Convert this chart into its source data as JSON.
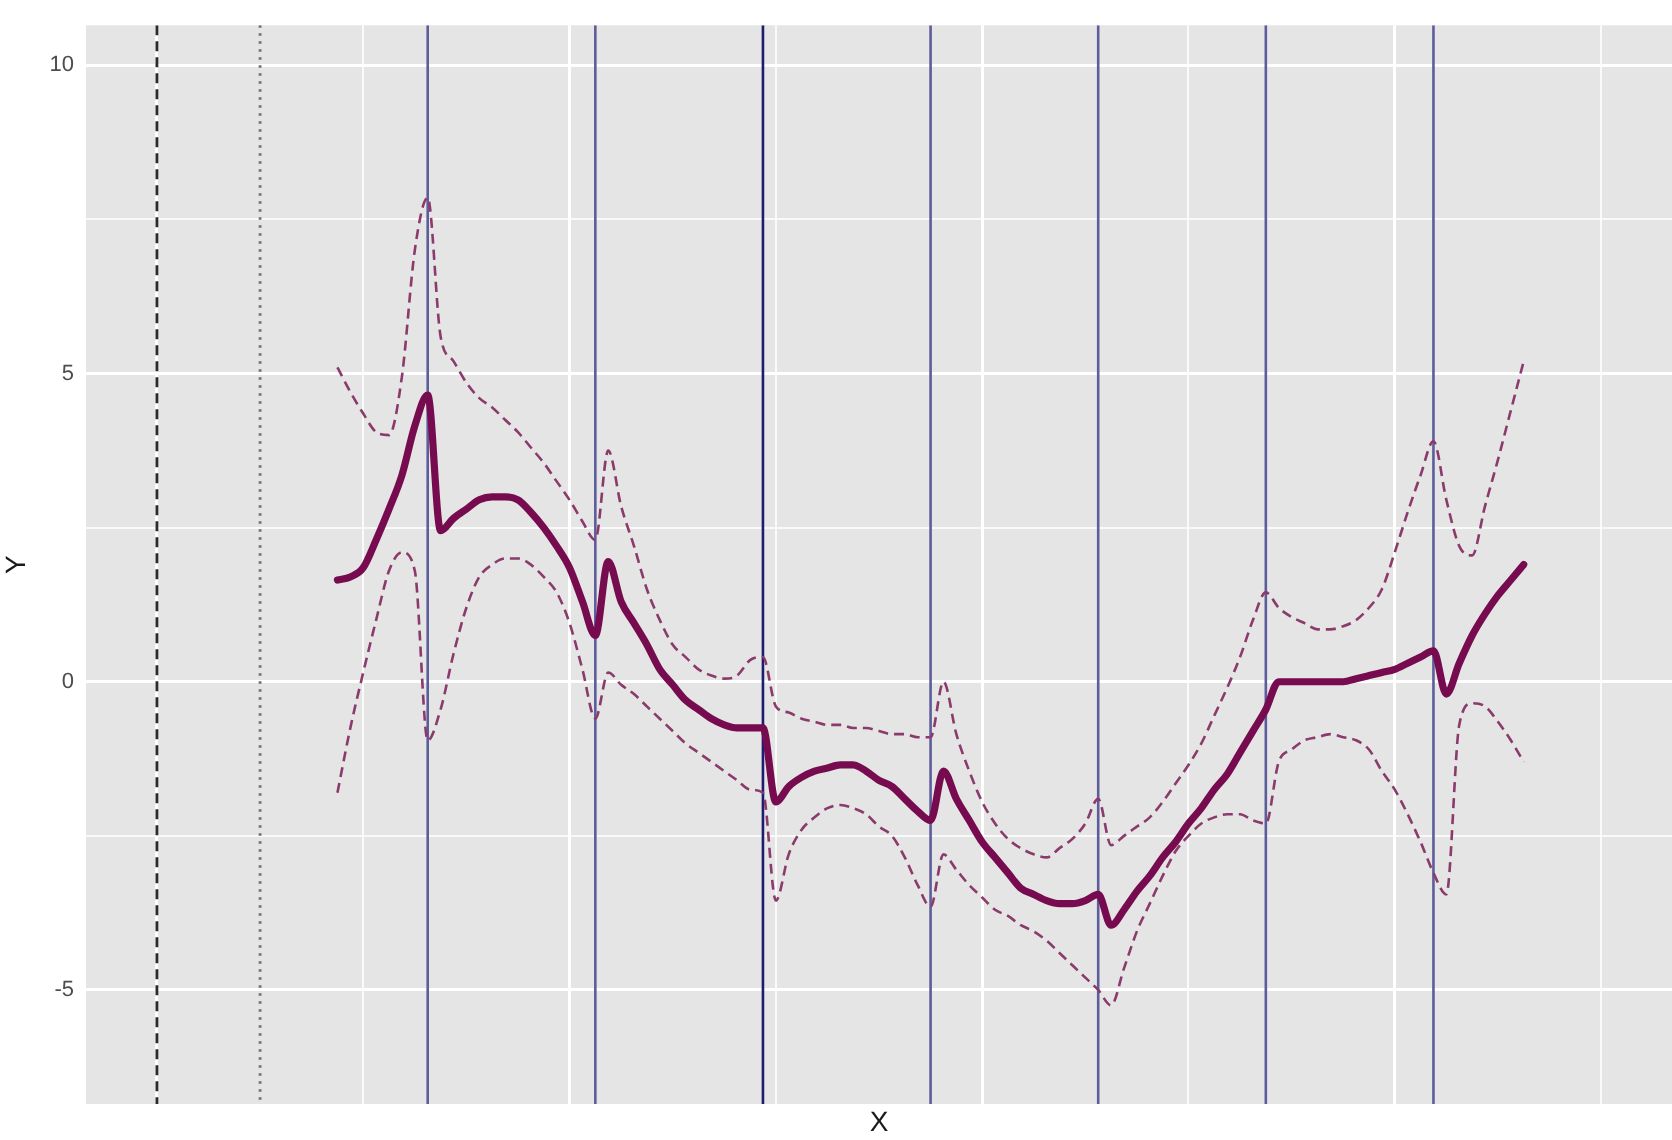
{
  "chart_data": {
    "type": "line",
    "xlabel": "X",
    "ylabel": "Y",
    "categories": [
      null,
      null,
      null,
      null,
      null,
      null,
      null,
      null,
      null,
      null,
      null,
      null,
      null,
      null,
      null,
      null,
      null,
      null,
      null,
      null,
      null,
      null,
      null,
      null,
      null,
      null,
      null,
      null,
      null,
      null,
      null,
      null,
      null,
      null,
      null,
      null,
      null,
      null,
      null,
      null,
      null,
      null,
      null,
      null,
      null,
      null,
      null,
      null,
      null,
      null,
      null,
      null,
      null,
      null,
      null,
      null,
      null,
      null,
      null,
      null,
      null,
      null,
      null,
      null,
      null,
      null,
      null,
      null,
      null,
      null,
      null,
      null,
      null,
      null,
      null,
      null,
      null,
      null,
      null,
      null,
      null,
      null,
      null,
      null,
      null,
      null,
      null,
      null,
      null,
      null,
      null,
      null,
      null,
      null,
      null,
      null,
      null,
      null,
      null,
      null,
      null,
      null,
      null,
      null,
      null,
      null,
      null,
      null,
      null,
      null,
      null,
      null,
      null,
      null,
      null,
      null,
      null,
      null,
      null,
      null,
      null,
      null,
      null
    ],
    "ylim": [
      -6.85,
      10.65
    ],
    "yticks": [
      -5,
      {
        "value": -2.5,
        "label": null
      },
      0,
      {
        "value": 2.5,
        "label": null
      },
      5,
      {
        "value": 7.5,
        "label": null
      },
      10
    ],
    "tick_labels": "y",
    "grid": true,
    "series": [
      {
        "color": "#770b4f",
        "line_style": "solid",
        "values": [
          null,
          null,
          null,
          null,
          null,
          null,
          null,
          null,
          null,
          null,
          null,
          null,
          null,
          null,
          null,
          null,
          null,
          null,
          null,
          1.65,
          1.7,
          1.85,
          2.3,
          2.8,
          3.35,
          4.15,
          4.65,
          2.45,
          2.65,
          2.8,
          2.95,
          3.0,
          3.0,
          2.95,
          2.75,
          2.5,
          2.2,
          1.85,
          1.3,
          0.75,
          1.95,
          1.3,
          0.95,
          0.6,
          0.2,
          -0.05,
          -0.3,
          -0.45,
          -0.6,
          -0.7,
          -0.75,
          -0.75,
          -0.75,
          -1.95,
          -1.7,
          -1.55,
          -1.45,
          -1.4,
          -1.35,
          -1.35,
          -1.45,
          -1.6,
          -1.7,
          -1.9,
          -2.1,
          -2.25,
          -1.45,
          -1.9,
          -2.25,
          -2.6,
          -2.85,
          -3.1,
          -3.35,
          -3.45,
          -3.55,
          -3.6,
          -3.6,
          -3.55,
          -3.45,
          -3.95,
          -3.7,
          -3.4,
          -3.15,
          -2.85,
          -2.6,
          -2.3,
          -2.05,
          -1.75,
          -1.5,
          -1.15,
          -0.8,
          -0.45,
          0.0,
          0.0,
          0.0,
          0.0,
          0.0,
          0.0,
          0.05,
          0.1,
          0.15,
          0.2,
          0.3,
          0.4,
          0.5,
          -0.2,
          0.3,
          0.75,
          1.1,
          1.4,
          1.65,
          1.9,
          null,
          null,
          null,
          null,
          null,
          null,
          null,
          null,
          null,
          null,
          null
        ]
      },
      {
        "color": "#8b3a6c",
        "line_style": "dashed",
        "values": [
          null,
          null,
          null,
          null,
          null,
          null,
          null,
          null,
          null,
          null,
          null,
          null,
          null,
          null,
          null,
          null,
          null,
          null,
          null,
          5.1,
          4.7,
          4.35,
          4.05,
          4.0,
          4.95,
          7.0,
          7.85,
          5.6,
          5.2,
          4.85,
          4.6,
          4.45,
          4.25,
          4.05,
          3.8,
          3.55,
          3.25,
          2.95,
          2.6,
          2.3,
          3.75,
          2.85,
          2.2,
          1.5,
          1.0,
          0.6,
          0.4,
          0.2,
          0.1,
          0.05,
          0.1,
          0.35,
          0.4,
          -0.4,
          -0.5,
          -0.6,
          -0.65,
          -0.7,
          -0.7,
          -0.75,
          -0.75,
          -0.8,
          -0.85,
          -0.85,
          -0.9,
          -0.9,
          0.0,
          -0.85,
          -1.45,
          -1.95,
          -2.3,
          -2.55,
          -2.7,
          -2.8,
          -2.85,
          -2.7,
          -2.55,
          -2.3,
          -1.9,
          -2.65,
          -2.5,
          -2.35,
          -2.2,
          -1.95,
          -1.65,
          -1.35,
          -1.0,
          -0.55,
          -0.1,
          0.4,
          1.0,
          1.45,
          1.2,
          1.05,
          0.95,
          0.85,
          0.85,
          0.9,
          1.0,
          1.2,
          1.5,
          2.1,
          2.75,
          3.35,
          3.9,
          2.95,
          2.2,
          2.05,
          2.85,
          3.6,
          4.4,
          5.2,
          null,
          null,
          null,
          null,
          null,
          null,
          null,
          null,
          null,
          null,
          null
        ]
      },
      {
        "color": "#8b3a6c",
        "line_style": "dashed",
        "values": [
          null,
          null,
          null,
          null,
          null,
          null,
          null,
          null,
          null,
          null,
          null,
          null,
          null,
          null,
          null,
          null,
          null,
          null,
          null,
          -1.8,
          -0.75,
          0.15,
          1.0,
          1.8,
          2.1,
          1.8,
          -0.95,
          -0.45,
          0.45,
          1.2,
          1.7,
          1.9,
          2.0,
          2.0,
          1.9,
          1.7,
          1.45,
          0.95,
          0.2,
          -0.6,
          0.15,
          -0.05,
          -0.2,
          -0.4,
          -0.6,
          -0.8,
          -1.0,
          -1.15,
          -1.3,
          -1.45,
          -1.6,
          -1.75,
          -1.8,
          -3.55,
          -2.8,
          -2.4,
          -2.2,
          -2.05,
          -2.0,
          -2.05,
          -2.15,
          -2.35,
          -2.5,
          -2.85,
          -3.3,
          -3.65,
          -2.8,
          -3.05,
          -3.3,
          -3.5,
          -3.7,
          -3.8,
          -3.95,
          -4.05,
          -4.2,
          -4.4,
          -4.6,
          -4.8,
          -5.0,
          -5.25,
          -4.65,
          -4.05,
          -3.6,
          -3.15,
          -2.75,
          -2.5,
          -2.3,
          -2.2,
          -2.15,
          -2.15,
          -2.25,
          -2.3,
          -1.3,
          -1.1,
          -0.95,
          -0.9,
          -0.85,
          -0.9,
          -0.95,
          -1.1,
          -1.45,
          -1.75,
          -2.15,
          -2.6,
          -3.1,
          -3.45,
          -0.7,
          -0.35,
          -0.4,
          -0.65,
          -0.95,
          -1.3,
          null,
          null,
          null,
          null,
          null,
          null,
          null,
          null,
          null,
          null,
          null
        ]
      }
    ]
  }
}
